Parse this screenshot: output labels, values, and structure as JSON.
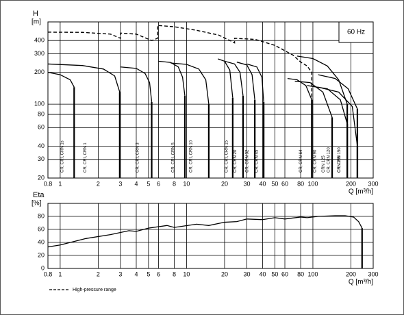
{
  "chart_data": [
    {
      "type": "line",
      "xlog": true,
      "ylog": true,
      "grid": true,
      "ylabel": "H",
      "yunit": "[m]",
      "xlabel": "Q [m³/h]",
      "annotation": "60 Hz",
      "xlim": [
        0.8,
        300
      ],
      "xticks": [
        0.8,
        1,
        2,
        3,
        4,
        5,
        6,
        8,
        10,
        20,
        30,
        40,
        50,
        60,
        80,
        100,
        200,
        300
      ],
      "ylim": [
        20,
        600
      ],
      "yticks": [
        20,
        30,
        40,
        60,
        80,
        100,
        200,
        300,
        400
      ],
      "series": [
        {
          "name": "CR, CRI, CRN 1s",
          "color": "#000000",
          "x": [
            0.8,
            1.0,
            1.2,
            1.29
          ],
          "values": [
            200,
            190,
            170,
            145
          ]
        },
        {
          "name": "CR, CRI, CRN 1",
          "color": "#000000",
          "x": [
            0.8,
            1.5,
            2.2,
            2.7,
            2.96
          ],
          "values": [
            240,
            232,
            215,
            185,
            130
          ]
        },
        {
          "name": "CR, CRI, CRN 3",
          "color": "#000000",
          "x": [
            3.0,
            4.0,
            4.7,
            5.1,
            5.3
          ],
          "values": [
            225,
            218,
            195,
            160,
            105
          ]
        },
        {
          "name": "CR, CRI, CRN 5",
          "color": "#000000",
          "x": [
            6.0,
            7.5,
            8.6,
            9.3,
            9.7
          ],
          "values": [
            255,
            248,
            225,
            180,
            120
          ]
        },
        {
          "name": "CR, CRI, CRN 10",
          "color": "#000000",
          "x": [
            7.5,
            10,
            12.5,
            14.2,
            15.0
          ],
          "values": [
            245,
            238,
            215,
            170,
            100
          ]
        },
        {
          "name": "CR, CRI, CRN 15",
          "color": "#000000",
          "x": [
            17.7,
            20,
            22,
            23.2
          ],
          "values": [
            268,
            255,
            210,
            115
          ]
        },
        {
          "name": "CR, CRN 20",
          "color": "#000000",
          "x": [
            20,
            24,
            26.5,
            28
          ],
          "values": [
            255,
            240,
            200,
            120
          ]
        },
        {
          "name": "CR, CRN 32",
          "color": "#000000",
          "x": [
            25,
            30,
            33,
            34.7
          ],
          "values": [
            250,
            235,
            190,
            110
          ]
        },
        {
          "name": "CR, CRN 45",
          "color": "#000000",
          "x": [
            30,
            36,
            39.5,
            40.8
          ],
          "values": [
            240,
            225,
            180,
            105
          ]
        },
        {
          "name": "CR, CRN 64",
          "color": "#000000",
          "x": [
            63,
            75,
            88,
            98
          ],
          "values": [
            175,
            170,
            150,
            110
          ]
        },
        {
          "name": "CR, CRN 90",
          "color": "#000000",
          "x": [
            72,
            95,
            120,
            142
          ],
          "values": [
            165,
            160,
            130,
            75
          ]
        },
        {
          "name": "CR, CRN 120",
          "color": "#000000",
          "x": [
            90,
            130,
            165,
            187
          ],
          "values": [
            150,
            140,
            110,
            65
          ]
        },
        {
          "name": "CR, CRN 150",
          "color": "#000000",
          "x": [
            110,
            160,
            205,
            225
          ],
          "values": [
            145,
            130,
            95,
            40
          ]
        },
        {
          "name": "CRN 125",
          "color": "#000000",
          "x": [
            75,
            100,
            130,
            160,
            187
          ],
          "values": [
            285,
            270,
            230,
            170,
            100
          ]
        },
        {
          "name": "CRN 155",
          "color": "#000000",
          "x": [
            110,
            150,
            190,
            225
          ],
          "values": [
            190,
            175,
            140,
            90
          ]
        },
        {
          "name": "High-pressure range",
          "color": "#000000",
          "style": "dashed",
          "x": [
            0.8,
            1.5,
            2.5,
            3.0,
            3.0,
            4.0,
            5.3,
            5.9,
            5.9,
            8,
            12,
            18,
            23,
            24,
            24,
            35,
            50,
            70,
            80,
            90,
            98,
            98
          ],
          "values": [
            480,
            478,
            460,
            420,
            470,
            460,
            400,
            420,
            555,
            540,
            500,
            450,
            390,
            380,
            420,
            410,
            360,
            290,
            250,
            230,
            200,
            110
          ]
        }
      ]
    },
    {
      "type": "line",
      "xlog": true,
      "grid": true,
      "ylabel": "Eta",
      "yunit": "[%]",
      "xlabel": "Q [m³/h]",
      "xlim": [
        0.8,
        300
      ],
      "xticks": [
        0.8,
        1,
        2,
        3,
        4,
        5,
        6,
        8,
        10,
        20,
        30,
        40,
        50,
        60,
        80,
        100,
        200,
        300
      ],
      "ylim": [
        0,
        100
      ],
      "yticks": [
        0,
        20,
        40,
        60,
        80
      ],
      "series": [
        {
          "name": "Eta",
          "color": "#000000",
          "drop": true,
          "x": [
            0.8,
            1,
            1.6,
            2.5,
            3.5,
            4,
            5,
            7,
            8,
            12,
            15,
            20,
            25,
            30,
            40,
            50,
            60,
            80,
            90,
            110,
            150,
            180,
            210,
            230,
            245
          ],
          "values": [
            33,
            36,
            46,
            52,
            58,
            57,
            62,
            66,
            63,
            68,
            66,
            71,
            72,
            76,
            75,
            78,
            76,
            79,
            78,
            80,
            81,
            81,
            79,
            72,
            62
          ]
        }
      ]
    }
  ]
}
